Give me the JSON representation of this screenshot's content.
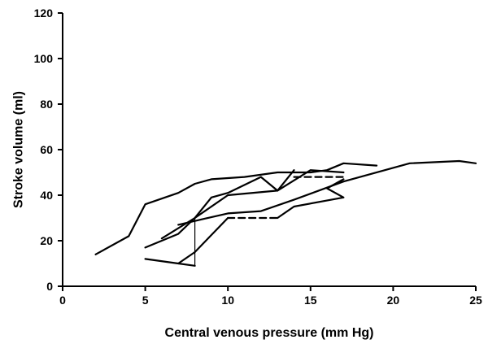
{
  "chart_data": {
    "type": "line",
    "xlabel": "Central venous pressure (mm Hg)",
    "ylabel": "Stroke volume (ml)",
    "xlim": [
      0,
      25
    ],
    "ylim": [
      0,
      120
    ],
    "x_ticks": [
      0,
      5,
      10,
      15,
      20,
      25
    ],
    "y_ticks": [
      0,
      20,
      40,
      60,
      80,
      100,
      120
    ],
    "grid": false,
    "legend": "none",
    "line_color": "#000000",
    "series": [
      {
        "style": "solid",
        "points": [
          [
            2,
            14
          ],
          [
            4,
            22
          ],
          [
            5,
            36
          ],
          [
            7,
            41
          ],
          [
            8,
            45
          ],
          [
            9,
            47
          ],
          [
            11,
            48
          ],
          [
            13,
            50
          ],
          [
            15,
            50
          ],
          [
            16,
            51
          ],
          [
            17,
            54
          ],
          [
            19,
            53
          ]
        ]
      },
      {
        "style": "solid",
        "points": [
          [
            5,
            17
          ],
          [
            7,
            23
          ],
          [
            8,
            30
          ],
          [
            9,
            39
          ],
          [
            10,
            41
          ],
          [
            12,
            48
          ],
          [
            13,
            42
          ],
          [
            14,
            51
          ]
        ]
      },
      {
        "style": "solid",
        "points": [
          [
            6,
            21
          ],
          [
            8,
            30
          ],
          [
            10,
            40
          ],
          [
            13,
            42
          ],
          [
            15,
            51
          ],
          [
            17,
            50
          ]
        ]
      },
      {
        "style": "solid",
        "points": [
          [
            5,
            12
          ],
          [
            7,
            10
          ],
          [
            8,
            15
          ],
          [
            10,
            30
          ]
        ]
      },
      {
        "style": "dashed",
        "points": [
          [
            10,
            30
          ],
          [
            13,
            30
          ]
        ]
      },
      {
        "style": "solid",
        "points": [
          [
            13,
            30
          ],
          [
            14,
            35
          ],
          [
            17,
            39
          ],
          [
            16,
            43
          ],
          [
            17,
            47
          ]
        ]
      },
      {
        "style": "solid",
        "points": [
          [
            7,
            27
          ],
          [
            10,
            32
          ],
          [
            12,
            33
          ],
          [
            14,
            38
          ],
          [
            17,
            46
          ],
          [
            21,
            54
          ],
          [
            24,
            55
          ],
          [
            25,
            54
          ]
        ]
      },
      {
        "style": "thin",
        "points": [
          [
            8,
            9
          ],
          [
            8,
            30
          ]
        ]
      },
      {
        "style": "dashed",
        "points": [
          [
            14,
            48
          ],
          [
            17,
            48
          ]
        ]
      },
      {
        "style": "solid",
        "points": [
          [
            7,
            10
          ],
          [
            8,
            9
          ]
        ]
      }
    ]
  }
}
